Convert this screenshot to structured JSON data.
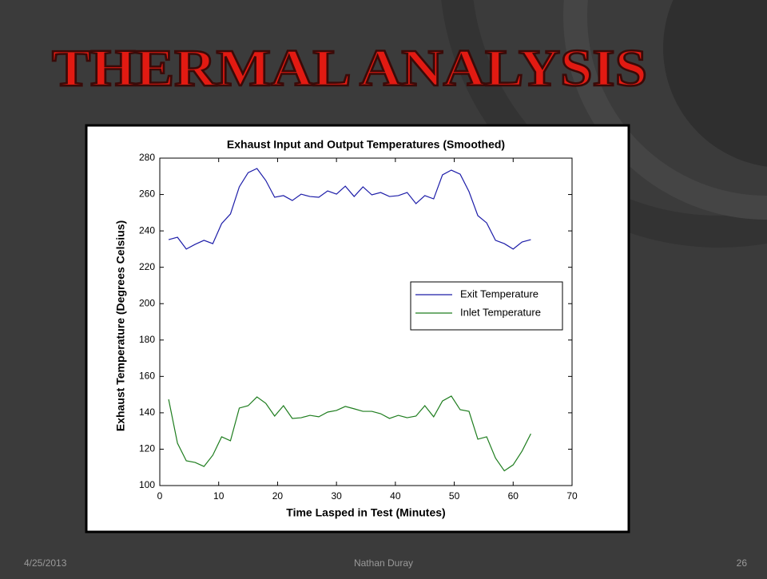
{
  "slide": {
    "title": "THERMAL ANALYSIS"
  },
  "footer": {
    "date": "4/25/2013",
    "author": "Nathan Duray",
    "page": "26"
  },
  "chart_data": {
    "type": "line",
    "title": "Exhaust Input and Output Temperatures (Smoothed)",
    "x_label": "Time Lasped in Test (Minutes)",
    "y_label": "Exhaust Temperature (Degrees Celsius)",
    "x": [
      1.5,
      3,
      4.5,
      6,
      7.5,
      9,
      10.5,
      12,
      13.5,
      15,
      16.5,
      18,
      19.5,
      21,
      22.5,
      24,
      25.5,
      27,
      28.5,
      30,
      31.5,
      33,
      34.5,
      36,
      37.5,
      39,
      40.5,
      42,
      43.5,
      45,
      46.5,
      48,
      49.5,
      51,
      52.5,
      54,
      55.5,
      57,
      58.5,
      60,
      61.5,
      63
    ],
    "series": [
      {
        "name": "Exit Temperature",
        "color": "#1c1ca8",
        "values": [
          235.2,
          236.5,
          230,
          232.6,
          234.8,
          233,
          244,
          249.3,
          264.2,
          272,
          274.3,
          267.7,
          258.5,
          259.4,
          256.7,
          260.2,
          258.9,
          258.5,
          262,
          260.2,
          264.6,
          258.9,
          264.2,
          259.8,
          261.1,
          258.9,
          259.4,
          261.1,
          255,
          259.4,
          257.6,
          270.8,
          273.4,
          271.2,
          261.6,
          248.4,
          244.4,
          234.8,
          233,
          230,
          233.9,
          235.2
        ]
      },
      {
        "name": "Inlet Temperature",
        "color": "#1e7d1e",
        "values": [
          147.4,
          123.3,
          113.6,
          112.7,
          110.5,
          116.7,
          126.8,
          124.6,
          142.6,
          143.9,
          148.7,
          145.2,
          138.2,
          143.9,
          136.9,
          137.3,
          138.6,
          137.8,
          140.4,
          141.3,
          143.5,
          142.2,
          140.8,
          140.8,
          139.5,
          136.9,
          138.6,
          137.3,
          138.2,
          143.9,
          137.8,
          146.5,
          149.2,
          141.7,
          140.8,
          125.5,
          126.8,
          115.1,
          108.1,
          111.4,
          118.9,
          128.5
        ]
      }
    ],
    "xlim": [
      0,
      70
    ],
    "ylim": [
      100,
      280
    ],
    "xticks": [
      0,
      10,
      20,
      30,
      40,
      50,
      60,
      70
    ],
    "yticks": [
      100,
      120,
      140,
      160,
      180,
      200,
      220,
      240,
      260,
      280
    ],
    "grid": false,
    "legend": "right"
  }
}
